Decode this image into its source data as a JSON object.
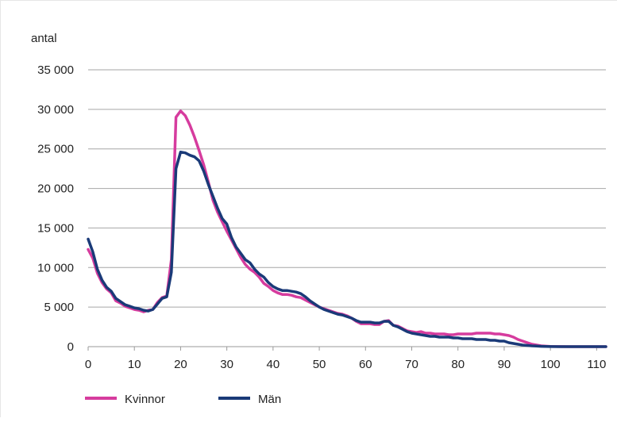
{
  "chart_data": {
    "type": "line",
    "title": "",
    "xlabel": "",
    "ylabel": "antal",
    "xlim": [
      0,
      112
    ],
    "ylim": [
      0,
      35000
    ],
    "x_ticks": [
      0,
      10,
      20,
      30,
      40,
      50,
      60,
      70,
      80,
      90,
      100,
      110
    ],
    "x_tick_labels": [
      "0",
      "10",
      "20",
      "30",
      "40",
      "50",
      "60",
      "70",
      "80",
      "90",
      "100",
      "110"
    ],
    "y_ticks": [
      0,
      5000,
      10000,
      15000,
      20000,
      25000,
      30000,
      35000
    ],
    "y_tick_labels": [
      "0",
      "5 000",
      "10 000",
      "15 000",
      "20 000",
      "25 000",
      "30 000",
      "35 000"
    ],
    "grid": "horizontal",
    "legend_position": "bottom-left",
    "series": [
      {
        "name": "Kvinnor",
        "color": "#d63c9e",
        "x": [
          0,
          1,
          2,
          3,
          4,
          5,
          6,
          7,
          8,
          9,
          10,
          11,
          12,
          13,
          14,
          15,
          16,
          17,
          18,
          19,
          20,
          21,
          22,
          23,
          24,
          25,
          26,
          27,
          28,
          29,
          30,
          31,
          32,
          33,
          34,
          35,
          36,
          37,
          38,
          39,
          40,
          41,
          42,
          43,
          44,
          45,
          46,
          47,
          48,
          49,
          50,
          51,
          52,
          53,
          54,
          55,
          56,
          57,
          58,
          59,
          60,
          61,
          62,
          63,
          64,
          65,
          66,
          67,
          68,
          69,
          70,
          71,
          72,
          73,
          74,
          75,
          76,
          77,
          78,
          79,
          80,
          81,
          82,
          83,
          84,
          85,
          86,
          87,
          88,
          89,
          90,
          91,
          92,
          93,
          94,
          95,
          96,
          97,
          98,
          99,
          100,
          102,
          104,
          106,
          108,
          110,
          112
        ],
        "y": [
          12300,
          11200,
          9300,
          8100,
          7300,
          6800,
          5800,
          5500,
          5100,
          4900,
          4700,
          4600,
          4400,
          4600,
          4700,
          5600,
          6200,
          6400,
          11000,
          29000,
          29800,
          29200,
          28000,
          26500,
          24800,
          23000,
          20800,
          18500,
          17000,
          15800,
          14600,
          13500,
          12400,
          11300,
          10400,
          9800,
          9400,
          8800,
          8000,
          7600,
          7100,
          6800,
          6600,
          6600,
          6500,
          6300,
          6200,
          5900,
          5600,
          5300,
          5000,
          4800,
          4600,
          4400,
          4200,
          4100,
          3900,
          3600,
          3200,
          2900,
          2900,
          2900,
          2800,
          2800,
          3200,
          3300,
          2700,
          2600,
          2300,
          2000,
          1900,
          1800,
          1900,
          1700,
          1700,
          1600,
          1600,
          1600,
          1500,
          1500,
          1600,
          1600,
          1600,
          1600,
          1700,
          1700,
          1700,
          1700,
          1600,
          1600,
          1500,
          1400,
          1200,
          900,
          700,
          500,
          300,
          200,
          100,
          60,
          30,
          10,
          0,
          0,
          0,
          0,
          0
        ]
      },
      {
        "name": "Män",
        "color": "#1a3a78",
        "x": [
          0,
          1,
          2,
          3,
          4,
          5,
          6,
          7,
          8,
          9,
          10,
          11,
          12,
          13,
          14,
          15,
          16,
          17,
          18,
          19,
          20,
          21,
          22,
          23,
          24,
          25,
          26,
          27,
          28,
          29,
          30,
          31,
          32,
          33,
          34,
          35,
          36,
          37,
          38,
          39,
          40,
          41,
          42,
          43,
          44,
          45,
          46,
          47,
          48,
          49,
          50,
          51,
          52,
          53,
          54,
          55,
          56,
          57,
          58,
          59,
          60,
          61,
          62,
          63,
          64,
          65,
          66,
          67,
          68,
          69,
          70,
          71,
          72,
          73,
          74,
          75,
          76,
          77,
          78,
          79,
          80,
          81,
          82,
          83,
          84,
          85,
          86,
          87,
          88,
          89,
          90,
          91,
          92,
          93,
          94,
          95,
          96,
          97,
          98,
          99,
          100,
          102,
          104,
          106,
          108,
          110,
          112
        ],
        "y": [
          13600,
          12000,
          9800,
          8400,
          7500,
          7000,
          6100,
          5700,
          5300,
          5100,
          4900,
          4800,
          4600,
          4500,
          4700,
          5400,
          6100,
          6300,
          9400,
          22500,
          24600,
          24500,
          24200,
          24000,
          23500,
          22200,
          20500,
          19000,
          17500,
          16200,
          15500,
          13800,
          12600,
          11800,
          11000,
          10600,
          9800,
          9200,
          8800,
          8100,
          7600,
          7300,
          7100,
          7100,
          7000,
          6900,
          6700,
          6300,
          5800,
          5400,
          5000,
          4700,
          4500,
          4300,
          4100,
          4000,
          3800,
          3600,
          3300,
          3100,
          3100,
          3100,
          3000,
          3000,
          3200,
          3200,
          2700,
          2500,
          2200,
          1900,
          1700,
          1600,
          1500,
          1400,
          1300,
          1300,
          1200,
          1200,
          1200,
          1100,
          1100,
          1000,
          1000,
          1000,
          900,
          900,
          900,
          800,
          800,
          700,
          700,
          500,
          400,
          300,
          200,
          150,
          100,
          70,
          40,
          20,
          10,
          0,
          0,
          0,
          0,
          0,
          0
        ]
      }
    ]
  }
}
